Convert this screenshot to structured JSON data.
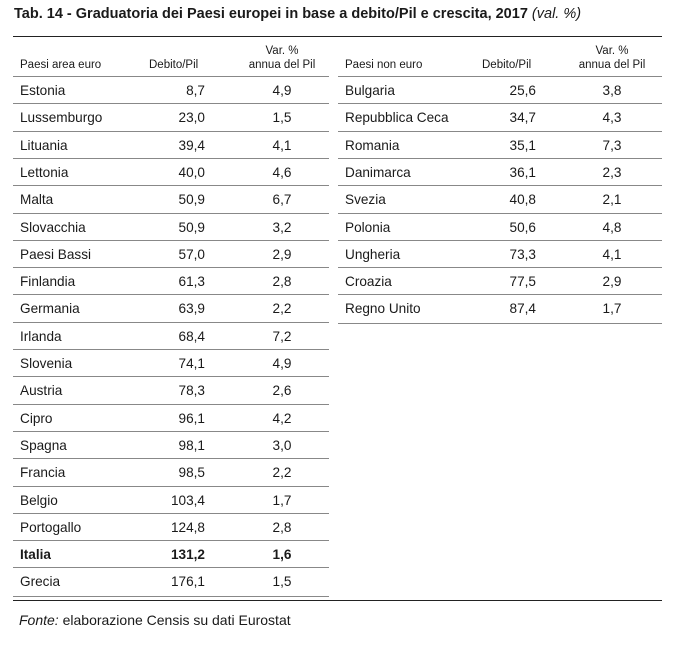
{
  "title": {
    "main": "Tab. 14 - Graduatoria dei Paesi europei in base a debito/Pil e crescita, 2017",
    "unit": "(val. %)"
  },
  "left_table": {
    "headers": {
      "country": "Paesi area euro",
      "debt": "Debito/Pil",
      "growth_line1": "Var. %",
      "growth_line2": "annua del Pil"
    },
    "rows": [
      {
        "country": "Estonia",
        "debt": "8,7",
        "growth": "4,9"
      },
      {
        "country": "Lussemburgo",
        "debt": "23,0",
        "growth": "1,5"
      },
      {
        "country": "Lituania",
        "debt": "39,4",
        "growth": "4,1"
      },
      {
        "country": "Lettonia",
        "debt": "40,0",
        "growth": "4,6"
      },
      {
        "country": "Malta",
        "debt": "50,9",
        "growth": "6,7"
      },
      {
        "country": "Slovacchia",
        "debt": "50,9",
        "growth": "3,2"
      },
      {
        "country": "Paesi Bassi",
        "debt": "57,0",
        "growth": "2,9"
      },
      {
        "country": "Finlandia",
        "debt": "61,3",
        "growth": "2,8"
      },
      {
        "country": "Germania",
        "debt": "63,9",
        "growth": "2,2"
      },
      {
        "country": "Irlanda",
        "debt": "68,4",
        "growth": "7,2"
      },
      {
        "country": "Slovenia",
        "debt": "74,1",
        "growth": "4,9"
      },
      {
        "country": "Austria",
        "debt": "78,3",
        "growth": "2,6"
      },
      {
        "country": "Cipro",
        "debt": "96,1",
        "growth": "4,2"
      },
      {
        "country": "Spagna",
        "debt": "98,1",
        "growth": "3,0"
      },
      {
        "country": "Francia",
        "debt": "98,5",
        "growth": "2,2"
      },
      {
        "country": "Belgio",
        "debt": "103,4",
        "growth": "1,7"
      },
      {
        "country": "Portogallo",
        "debt": "124,8",
        "growth": "2,8"
      },
      {
        "country": "Italia",
        "debt": "131,2",
        "growth": "1,6",
        "bold": true
      },
      {
        "country": "Grecia",
        "debt": "176,1",
        "growth": "1,5"
      }
    ]
  },
  "right_table": {
    "headers": {
      "country": "Paesi non euro",
      "debt": "Debito/Pil",
      "growth_line1": "Var. %",
      "growth_line2": "annua del Pil"
    },
    "rows": [
      {
        "country": "Bulgaria",
        "debt": "25,6",
        "growth": "3,8"
      },
      {
        "country": "Repubblica Ceca",
        "debt": "34,7",
        "growth": "4,3"
      },
      {
        "country": "Romania",
        "debt": "35,1",
        "growth": "7,3"
      },
      {
        "country": "Danimarca",
        "debt": "36,1",
        "growth": "2,3"
      },
      {
        "country": "Svezia",
        "debt": "40,8",
        "growth": "2,1"
      },
      {
        "country": "Polonia",
        "debt": "50,6",
        "growth": "4,8"
      },
      {
        "country": "Ungheria",
        "debt": "73,3",
        "growth": "4,1"
      },
      {
        "country": "Croazia",
        "debt": "77,5",
        "growth": "2,9"
      },
      {
        "country": "Regno Unito",
        "debt": "87,4",
        "growth": "1,7"
      }
    ]
  },
  "footer": {
    "label": "Fonte:",
    "text": "elaborazione Censis su dati Eurostat"
  }
}
